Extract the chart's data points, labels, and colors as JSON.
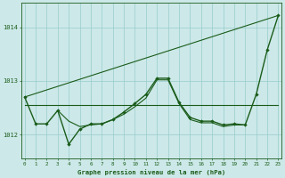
{
  "background_color": "#cce8e8",
  "grid_color": "#99cccc",
  "line_color": "#1a5c1a",
  "title": "Graphe pression niveau de la mer (hPa)",
  "ylim": [
    1011.55,
    1014.45
  ],
  "xlim": [
    -0.3,
    23.3
  ],
  "yticks": [
    1012.0,
    1013.0,
    1014.0
  ],
  "xticks": [
    0,
    1,
    2,
    3,
    4,
    5,
    6,
    7,
    8,
    9,
    10,
    11,
    12,
    13,
    14,
    15,
    16,
    17,
    18,
    19,
    20,
    21,
    22,
    23
  ],
  "series": [
    {
      "x": [
        0,
        1,
        2,
        3,
        4,
        5,
        6,
        7,
        8,
        9,
        10,
        11,
        12,
        13,
        14,
        15,
        16,
        17,
        18,
        19,
        20,
        21,
        22,
        23
      ],
      "y": [
        1012.7,
        1012.2,
        1012.2,
        1012.45,
        1011.82,
        1012.1,
        1012.2,
        1012.2,
        1012.28,
        1012.42,
        1012.58,
        1012.75,
        1013.05,
        1013.05,
        1012.6,
        1012.32,
        1012.25,
        1012.25,
        1012.18,
        1012.2,
        1012.18,
        1012.75,
        1013.58,
        1014.22
      ],
      "markers": true,
      "linewidth": 1.0
    },
    {
      "x": [
        0,
        23
      ],
      "y": [
        1012.55,
        1012.55
      ],
      "markers": false,
      "linewidth": 0.8
    },
    {
      "x": [
        0,
        23
      ],
      "y": [
        1012.7,
        1014.22
      ],
      "markers": false,
      "linewidth": 0.8
    },
    {
      "x": [
        3,
        4,
        5,
        6,
        7,
        8,
        9,
        10,
        11,
        12,
        13,
        14,
        15,
        16,
        17,
        18,
        19,
        20
      ],
      "y": [
        1012.45,
        1012.25,
        1012.15,
        1012.18,
        1012.2,
        1012.28,
        1012.38,
        1012.52,
        1012.68,
        1013.02,
        1013.02,
        1012.58,
        1012.28,
        1012.22,
        1012.22,
        1012.15,
        1012.18,
        1012.18
      ],
      "markers": false,
      "linewidth": 0.8
    }
  ]
}
